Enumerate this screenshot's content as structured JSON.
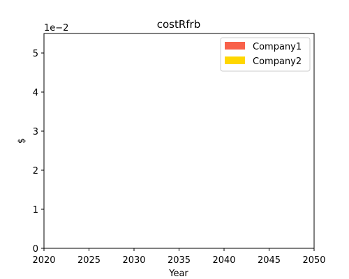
{
  "chart_data": {
    "type": "area",
    "title": "costRfrb",
    "xlabel": "Year",
    "ylabel": "$",
    "y_offset_text": "1e−2",
    "xlim": [
      2020,
      2050
    ],
    "ylim": [
      0,
      5.5
    ],
    "x_ticks": [
      2020,
      2025,
      2030,
      2035,
      2040,
      2045,
      2050
    ],
    "x_tick_labels": [
      "2020",
      "2025",
      "2030",
      "2035",
      "2040",
      "2045",
      "2050"
    ],
    "y_ticks": [
      0,
      1,
      2,
      3,
      4,
      5
    ],
    "y_tick_labels": [
      "0",
      "1",
      "2",
      "3",
      "4",
      "5"
    ],
    "grid": false,
    "legend_position": "top-right",
    "series": [
      {
        "name": "Company1",
        "color": "#f8614a",
        "x": [
          2020,
          2025,
          2030,
          2035,
          2040,
          2045,
          2050
        ],
        "values": [
          0,
          0,
          0,
          0,
          0,
          0,
          0
        ]
      },
      {
        "name": "Company2",
        "color": "#ffd700",
        "x": [
          2020,
          2025,
          2030,
          2035,
          2040,
          2045,
          2050
        ],
        "values": [
          0,
          0,
          0,
          0,
          0,
          0,
          0
        ]
      }
    ]
  }
}
